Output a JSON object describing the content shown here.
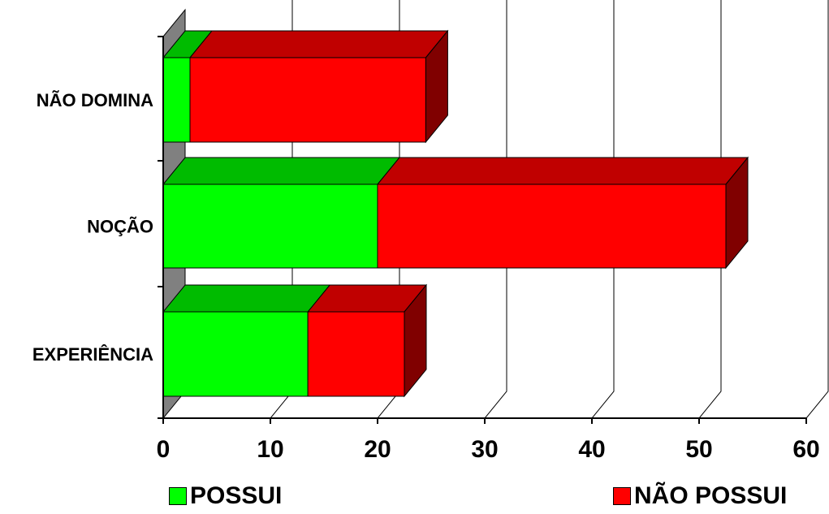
{
  "chart_data": {
    "type": "bar",
    "orientation": "horizontal",
    "stacked": true,
    "three_d": true,
    "title": "",
    "xlabel": "",
    "ylabel": "",
    "categories": [
      "NÃO DOMINA",
      "NOÇÃO",
      "EXPERIÊNCIA"
    ],
    "series": [
      {
        "name": "POSSUI",
        "values": [
          2.5,
          20,
          13.5
        ],
        "color": "#00ff00",
        "top_color": "#00bb00"
      },
      {
        "name": "NÃO POSSUI",
        "values": [
          22,
          32.5,
          9
        ],
        "color": "#ff0000",
        "side_color": "#800000",
        "top_color": "#c00000"
      }
    ],
    "xlim": [
      0,
      60
    ],
    "xticks": [
      "0",
      "10",
      "20",
      "30",
      "40",
      "50",
      "60"
    ],
    "grid": true,
    "legend_position": "bottom"
  }
}
